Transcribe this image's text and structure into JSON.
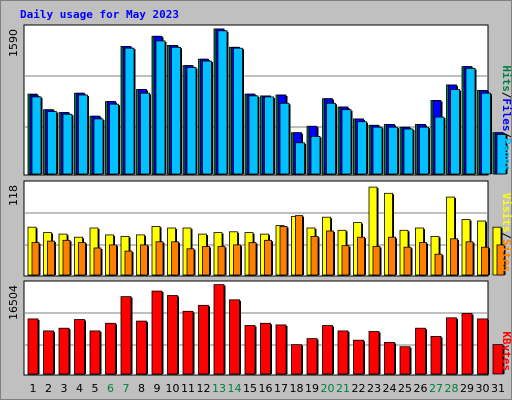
{
  "title": "Daily usage for May 2023",
  "chart_data": [
    {
      "type": "bar",
      "panel": "top",
      "ymax_label": "1590",
      "ylim": [
        0,
        1590
      ],
      "legend": [
        {
          "name": "Pages",
          "color": "#00c0ff"
        },
        {
          "name": "Files",
          "color": "#0000ff"
        },
        {
          "name": "Hits",
          "color": "#008040"
        }
      ],
      "categories": [
        "1",
        "2",
        "3",
        "4",
        "5",
        "6",
        "7",
        "8",
        "9",
        "10",
        "11",
        "12",
        "13",
        "14",
        "15",
        "16",
        "17",
        "18",
        "19",
        "20",
        "21",
        "22",
        "23",
        "24",
        "25",
        "26",
        "27",
        "28",
        "29",
        "30",
        "31"
      ],
      "series": [
        {
          "name": "Hits",
          "values": [
            870,
            700,
            670,
            880,
            630,
            790,
            1390,
            920,
            1500,
            1400,
            1180,
            1250,
            1580,
            1380,
            870,
            850,
            860,
            450,
            520,
            820,
            730,
            600,
            530,
            540,
            510,
            540,
            800,
            970,
            1170,
            910,
            450
          ]
        },
        {
          "name": "Files",
          "values": [
            860,
            700,
            670,
            880,
            630,
            790,
            1390,
            920,
            1500,
            1400,
            1180,
            1250,
            1580,
            1380,
            870,
            850,
            860,
            450,
            520,
            820,
            730,
            600,
            530,
            540,
            510,
            540,
            800,
            970,
            1170,
            910,
            450
          ]
        },
        {
          "name": "Pages",
          "values": [
            840,
            680,
            650,
            860,
            600,
            760,
            1370,
            880,
            1450,
            1380,
            1160,
            1230,
            1560,
            1370,
            850,
            840,
            770,
            340,
            410,
            770,
            700,
            570,
            510,
            510,
            490,
            510,
            620,
            920,
            1150,
            880,
            430
          ]
        }
      ]
    },
    {
      "type": "bar",
      "panel": "middle",
      "ymax_label": "118",
      "ylim": [
        0,
        118
      ],
      "legend": [
        {
          "name": "Sites",
          "color": "#ff8000"
        },
        {
          "name": "Visits",
          "color": "#ffff00"
        }
      ],
      "categories": [
        "1",
        "2",
        "3",
        "4",
        "5",
        "6",
        "7",
        "8",
        "9",
        "10",
        "11",
        "12",
        "13",
        "14",
        "15",
        "16",
        "17",
        "18",
        "19",
        "20",
        "21",
        "22",
        "23",
        "24",
        "25",
        "26",
        "27",
        "28",
        "29",
        "30",
        "31"
      ],
      "series": [
        {
          "name": "Visits",
          "values": [
            62,
            55,
            53,
            49,
            61,
            52,
            50,
            52,
            63,
            61,
            61,
            53,
            55,
            56,
            55,
            53,
            64,
            76,
            61,
            75,
            58,
            68,
            114,
            106,
            58,
            61,
            50,
            101,
            72,
            70,
            62
          ]
        },
        {
          "name": "Sites",
          "values": [
            42,
            44,
            45,
            42,
            35,
            39,
            31,
            39,
            43,
            43,
            34,
            37,
            37,
            39,
            42,
            45,
            63,
            77,
            50,
            57,
            38,
            49,
            37,
            49,
            36,
            42,
            27,
            47,
            43,
            36,
            39
          ]
        }
      ]
    },
    {
      "type": "bar",
      "panel": "bottom",
      "ymax_label": "16504",
      "ylim": [
        0,
        16504
      ],
      "legend": [
        {
          "name": "KBytes",
          "color": "#ff0000"
        }
      ],
      "categories": [
        "1",
        "2",
        "3",
        "4",
        "5",
        "6",
        "7",
        "8",
        "9",
        "10",
        "11",
        "12",
        "13",
        "14",
        "15",
        "16",
        "17",
        "18",
        "19",
        "20",
        "21",
        "22",
        "23",
        "24",
        "25",
        "26",
        "27",
        "28",
        "29",
        "30",
        "31"
      ],
      "series": [
        {
          "name": "KBytes",
          "values": [
            10100,
            7900,
            8400,
            10000,
            7900,
            9300,
            14200,
            9700,
            15200,
            14400,
            11500,
            12600,
            16400,
            13600,
            8900,
            9300,
            9000,
            5400,
            6500,
            8900,
            7900,
            6200,
            7800,
            5800,
            5000,
            8400,
            6900,
            10300,
            11100,
            10100,
            5400
          ]
        }
      ]
    }
  ],
  "days": [
    {
      "label": "1",
      "weekend": false
    },
    {
      "label": "2",
      "weekend": false
    },
    {
      "label": "3",
      "weekend": false
    },
    {
      "label": "4",
      "weekend": false
    },
    {
      "label": "5",
      "weekend": false
    },
    {
      "label": "6",
      "weekend": true
    },
    {
      "label": "7",
      "weekend": true
    },
    {
      "label": "8",
      "weekend": false
    },
    {
      "label": "9",
      "weekend": false
    },
    {
      "label": "10",
      "weekend": false
    },
    {
      "label": "11",
      "weekend": false
    },
    {
      "label": "12",
      "weekend": false
    },
    {
      "label": "13",
      "weekend": true
    },
    {
      "label": "14",
      "weekend": true
    },
    {
      "label": "15",
      "weekend": false
    },
    {
      "label": "16",
      "weekend": false
    },
    {
      "label": "17",
      "weekend": false
    },
    {
      "label": "18",
      "weekend": false
    },
    {
      "label": "19",
      "weekend": false
    },
    {
      "label": "20",
      "weekend": true
    },
    {
      "label": "21",
      "weekend": true
    },
    {
      "label": "22",
      "weekend": false
    },
    {
      "label": "23",
      "weekend": false
    },
    {
      "label": "24",
      "weekend": false
    },
    {
      "label": "25",
      "weekend": false
    },
    {
      "label": "26",
      "weekend": false
    },
    {
      "label": "27",
      "weekend": true
    },
    {
      "label": "28",
      "weekend": true
    },
    {
      "label": "29",
      "weekend": false
    },
    {
      "label": "30",
      "weekend": false
    },
    {
      "label": "31",
      "weekend": false
    }
  ],
  "colors": {
    "frame_bg": "#c0c0c0",
    "panel_bg": "#ffffff",
    "title": "#0000ff",
    "weekday_label": "#000000",
    "weekend_label": "#008040",
    "separator": "#000000"
  }
}
